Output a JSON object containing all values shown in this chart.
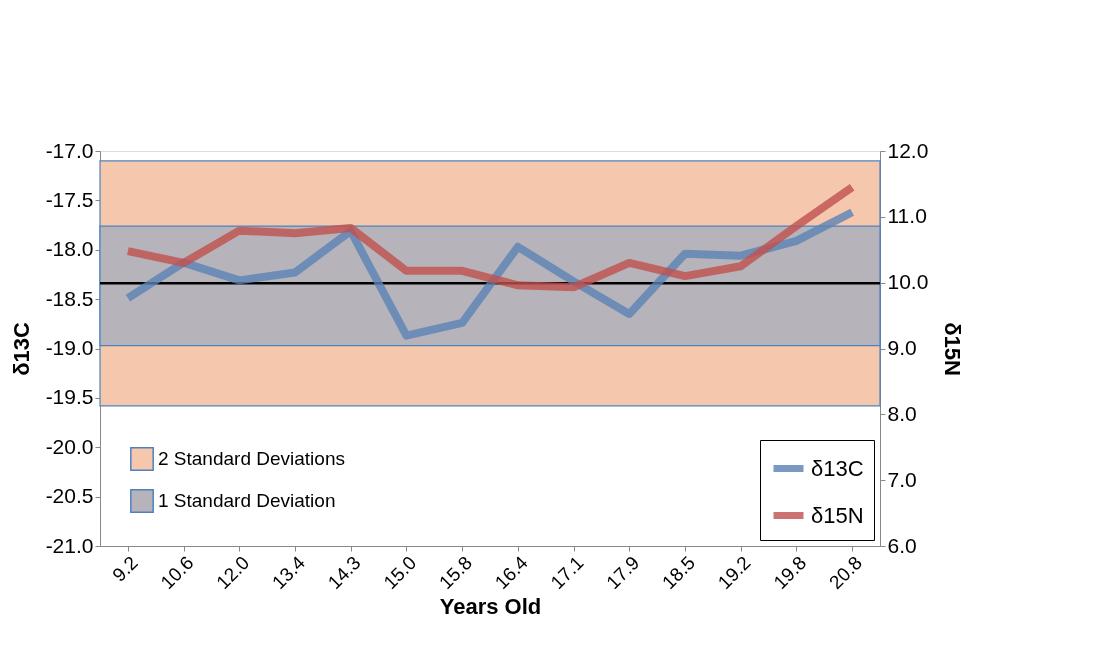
{
  "chart_data": {
    "type": "line",
    "xlabel": "Years Old",
    "ylabel": "δ13C",
    "y2label": "δ15N",
    "categories": [
      "9.2",
      "10.6",
      "12.0",
      "13.4",
      "14.3",
      "15.0",
      "15.8",
      "16.4",
      "17.1",
      "17.9",
      "18.5",
      "19.2",
      "19.8",
      "20.8"
    ],
    "series": [
      {
        "name": "δ15N",
        "color": "#c0504d",
        "axis": "y2",
        "values": [
          10.48,
          10.3,
          10.79,
          10.75,
          10.83,
          10.18,
          10.18,
          9.96,
          9.93,
          10.3,
          10.1,
          10.25,
          10.86,
          11.45
        ]
      },
      {
        "name": "δ13C",
        "color": "#5b82b5",
        "values": [
          -18.49,
          -18.13,
          -18.31,
          -18.23,
          -17.81,
          -18.87,
          -18.74,
          -17.97,
          -18.32,
          -18.65,
          -18.04,
          -18.06,
          -17.91,
          -17.62
        ]
      }
    ],
    "ylim": [
      -21,
      -17
    ],
    "yticks": [
      {
        "value": -21,
        "label": "-21.0"
      },
      {
        "value": -20.5,
        "label": "-20.5"
      },
      {
        "value": -20,
        "label": "-20.0"
      },
      {
        "value": -19.5,
        "label": "-19.5"
      },
      {
        "value": -19,
        "label": "-19.0"
      },
      {
        "value": -18.5,
        "label": "-18.5"
      },
      {
        "value": -18,
        "label": "-18.0"
      },
      {
        "value": -17.5,
        "label": "-17.5"
      },
      {
        "value": -17,
        "label": "-17.0"
      }
    ],
    "y2lim": [
      6,
      12
    ],
    "y2ticks": [
      {
        "value": 6,
        "label": "6.0"
      },
      {
        "value": 7,
        "label": "7.0"
      },
      {
        "value": 8,
        "label": "8.0"
      },
      {
        "value": 9,
        "label": "9.0"
      },
      {
        "value": 10,
        "label": "10.0"
      },
      {
        "value": 11,
        "label": "11.0"
      },
      {
        "value": 12,
        "label": "12.0"
      }
    ],
    "bands": [
      {
        "axis": "y",
        "from": -19.58,
        "to": -17.1,
        "label": "2 Standard Deviations",
        "color": "#f5c8ad"
      },
      {
        "axis": "y",
        "from": -18.97,
        "to": -17.76,
        "label": "1 Standard Deviation",
        "color": "#b6b4ba"
      }
    ],
    "ref_lines": [
      {
        "axis": "y",
        "value": -18.34,
        "color": "#000000"
      }
    ],
    "legend": "bottom right",
    "grid": false
  }
}
